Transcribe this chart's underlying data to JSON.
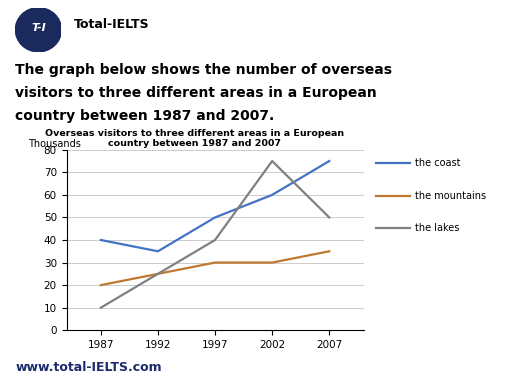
{
  "chart_title_line1": "Overseas visitors to three different areas in a European",
  "chart_title_line2": "country between 1987 and 2007",
  "ylabel": "Thousands",
  "years": [
    1987,
    1992,
    1997,
    2002,
    2007
  ],
  "coast": [
    40,
    35,
    50,
    60,
    75
  ],
  "mountains": [
    20,
    25,
    30,
    30,
    35
  ],
  "lakes": [
    10,
    25,
    40,
    75,
    50
  ],
  "coast_color": "#4472C4",
  "mountains_color": "#C07830",
  "lakes_color": "#808080",
  "ylim": [
    0,
    80
  ],
  "yticks": [
    0,
    10,
    20,
    30,
    40,
    50,
    60,
    70,
    80
  ],
  "bg_color": "#FFFFFF",
  "header_line1": "The graph below shows the number of overseas",
  "header_line2": "visitors to three different areas in a European",
  "header_line3": "country between 1987 and 2007.",
  "logo_bg": "#1a2a5c",
  "logo_text": "T-I",
  "brand_text": "Total-IELTS",
  "footer_text": "www.total-IELTS.com",
  "footer_color": "#1a2a6c"
}
